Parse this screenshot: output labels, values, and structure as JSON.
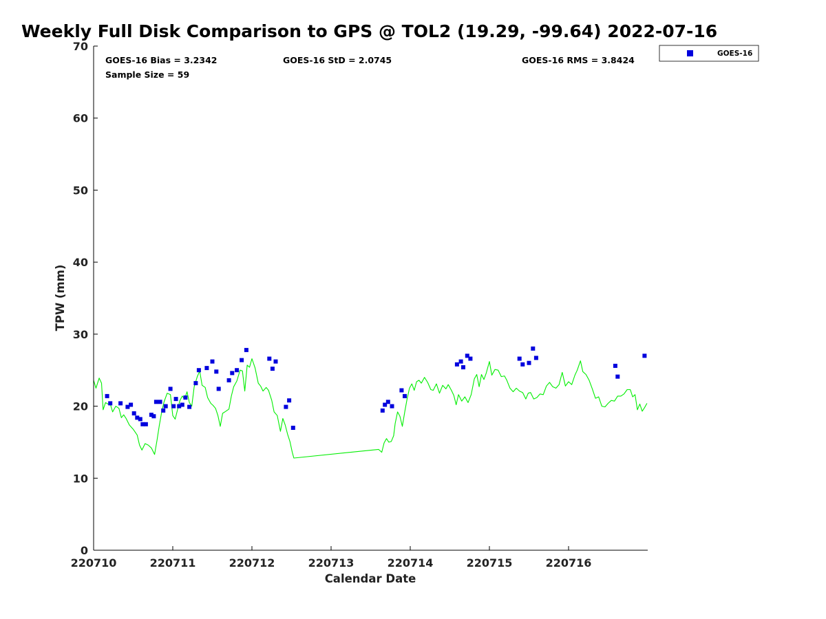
{
  "chart_data": {
    "type": "scatter",
    "title": "Weekly Full Disk Comparison to GPS @ TOL2 (19.29, -99.64) 2022-07-16",
    "xlabel": "Calendar Date",
    "ylabel": "TPW (mm)",
    "x_unit": "days (220710 = 0)",
    "xlim": [
      0,
      7
    ],
    "ylim": [
      0,
      70
    ],
    "x_ticks": [
      0,
      1,
      2,
      3,
      4,
      5,
      6
    ],
    "x_tick_labels": [
      "220710",
      "220711",
      "220712",
      "220713",
      "220714",
      "220715",
      "220716"
    ],
    "y_ticks": [
      0,
      10,
      20,
      30,
      40,
      50,
      60,
      70
    ],
    "y_tick_labels": [
      "0",
      "10",
      "20",
      "30",
      "40",
      "50",
      "60",
      "70"
    ],
    "grid": false,
    "legend_position": "outside-top-right",
    "stats": {
      "bias": "GOES-16 Bias = 3.2342",
      "std": "GOES-16 StD = 2.0745",
      "rms": "GOES-16 RMS = 3.8424",
      "sample_size": "Sample Size = 59"
    },
    "series": [
      {
        "name": "GOES-16",
        "kind": "markers",
        "color": "#0000dd",
        "points": [
          [
            0.17,
            21.4
          ],
          [
            0.21,
            20.4
          ],
          [
            0.34,
            20.4
          ],
          [
            0.43,
            19.9
          ],
          [
            0.47,
            20.2
          ],
          [
            0.51,
            19.0
          ],
          [
            0.55,
            18.4
          ],
          [
            0.59,
            18.2
          ],
          [
            0.62,
            17.5
          ],
          [
            0.66,
            17.5
          ],
          [
            0.73,
            18.8
          ],
          [
            0.76,
            18.6
          ],
          [
            0.79,
            20.6
          ],
          [
            0.84,
            20.6
          ],
          [
            0.88,
            19.4
          ],
          [
            0.91,
            20.0
          ],
          [
            0.97,
            22.4
          ],
          [
            1.01,
            20.0
          ],
          [
            1.04,
            21.0
          ],
          [
            1.08,
            20.0
          ],
          [
            1.12,
            20.2
          ],
          [
            1.16,
            21.2
          ],
          [
            1.21,
            19.9
          ],
          [
            1.29,
            23.2
          ],
          [
            1.33,
            25.0
          ],
          [
            1.43,
            25.3
          ],
          [
            1.5,
            26.2
          ],
          [
            1.55,
            24.8
          ],
          [
            1.58,
            22.4
          ],
          [
            1.71,
            23.6
          ],
          [
            1.75,
            24.6
          ],
          [
            1.81,
            25.0
          ],
          [
            1.87,
            26.4
          ],
          [
            1.93,
            27.8
          ],
          [
            2.22,
            26.6
          ],
          [
            2.26,
            25.2
          ],
          [
            2.3,
            26.2
          ],
          [
            2.43,
            19.9
          ],
          [
            2.47,
            20.8
          ],
          [
            2.52,
            17.0
          ],
          [
            3.65,
            19.4
          ],
          [
            3.68,
            20.2
          ],
          [
            3.72,
            20.6
          ],
          [
            3.77,
            20.0
          ],
          [
            3.89,
            22.2
          ],
          [
            3.93,
            21.4
          ],
          [
            4.59,
            25.8
          ],
          [
            4.64,
            26.2
          ],
          [
            4.67,
            25.4
          ],
          [
            4.72,
            27.0
          ],
          [
            4.76,
            26.6
          ],
          [
            5.38,
            26.6
          ],
          [
            5.42,
            25.8
          ],
          [
            5.5,
            26.0
          ],
          [
            5.55,
            28.0
          ],
          [
            5.59,
            26.7
          ],
          [
            6.59,
            25.6
          ],
          [
            6.62,
            24.1
          ],
          [
            6.96,
            27.0
          ]
        ]
      },
      {
        "name": "GPS",
        "kind": "line",
        "color": "#00ee00",
        "points": [
          [
            0.0,
            23.6
          ],
          [
            0.03,
            22.5
          ],
          [
            0.07,
            23.9
          ],
          [
            0.1,
            23.2
          ],
          [
            0.12,
            19.5
          ],
          [
            0.15,
            20.5
          ],
          [
            0.18,
            20.3
          ],
          [
            0.21,
            20.3
          ],
          [
            0.24,
            19.2
          ],
          [
            0.28,
            20.0
          ],
          [
            0.32,
            19.7
          ],
          [
            0.35,
            18.4
          ],
          [
            0.38,
            18.8
          ],
          [
            0.41,
            18.3
          ],
          [
            0.45,
            17.4
          ],
          [
            0.5,
            16.8
          ],
          [
            0.55,
            16.0
          ],
          [
            0.58,
            14.6
          ],
          [
            0.61,
            13.9
          ],
          [
            0.65,
            14.8
          ],
          [
            0.69,
            14.6
          ],
          [
            0.73,
            14.2
          ],
          [
            0.77,
            13.3
          ],
          [
            0.8,
            15.2
          ],
          [
            0.83,
            17.3
          ],
          [
            0.86,
            19.2
          ],
          [
            0.89,
            20.6
          ],
          [
            0.93,
            21.8
          ],
          [
            0.97,
            21.6
          ],
          [
            1.0,
            18.7
          ],
          [
            1.03,
            18.2
          ],
          [
            1.06,
            19.5
          ],
          [
            1.09,
            20.8
          ],
          [
            1.12,
            21.4
          ],
          [
            1.15,
            21.0
          ],
          [
            1.18,
            22.0
          ],
          [
            1.21,
            20.5
          ],
          [
            1.24,
            20.0
          ],
          [
            1.27,
            22.7
          ],
          [
            1.31,
            24.1
          ],
          [
            1.34,
            24.9
          ],
          [
            1.37,
            22.9
          ],
          [
            1.41,
            22.6
          ],
          [
            1.44,
            21.2
          ],
          [
            1.48,
            20.4
          ],
          [
            1.51,
            20.1
          ],
          [
            1.54,
            19.7
          ],
          [
            1.57,
            18.7
          ],
          [
            1.6,
            17.2
          ],
          [
            1.63,
            19.0
          ],
          [
            1.67,
            19.3
          ],
          [
            1.71,
            19.6
          ],
          [
            1.74,
            21.4
          ],
          [
            1.77,
            22.7
          ],
          [
            1.81,
            23.5
          ],
          [
            1.85,
            25.0
          ],
          [
            1.88,
            24.9
          ],
          [
            1.91,
            22.1
          ],
          [
            1.94,
            25.7
          ],
          [
            1.97,
            25.4
          ],
          [
            2.0,
            26.6
          ],
          [
            2.04,
            25.3
          ],
          [
            2.08,
            23.2
          ],
          [
            2.11,
            22.8
          ],
          [
            2.14,
            22.1
          ],
          [
            2.18,
            22.6
          ],
          [
            2.21,
            22.2
          ],
          [
            2.25,
            20.8
          ],
          [
            2.28,
            19.2
          ],
          [
            2.32,
            18.7
          ],
          [
            2.36,
            16.5
          ],
          [
            2.39,
            18.3
          ],
          [
            2.42,
            17.4
          ],
          [
            2.45,
            16.1
          ],
          [
            2.48,
            15.1
          ],
          [
            2.51,
            13.6
          ],
          [
            2.53,
            12.8
          ],
          [
            3.6,
            14.0
          ],
          [
            3.64,
            13.6
          ],
          [
            3.67,
            14.9
          ],
          [
            3.7,
            15.5
          ],
          [
            3.73,
            15.0
          ],
          [
            3.76,
            15.1
          ],
          [
            3.79,
            15.9
          ],
          [
            3.81,
            17.6
          ],
          [
            3.84,
            19.2
          ],
          [
            3.87,
            18.6
          ],
          [
            3.9,
            17.2
          ],
          [
            3.93,
            19.2
          ],
          [
            3.96,
            21.0
          ],
          [
            3.99,
            22.5
          ],
          [
            4.02,
            23.1
          ],
          [
            4.05,
            22.2
          ],
          [
            4.08,
            23.4
          ],
          [
            4.11,
            23.6
          ],
          [
            4.14,
            23.2
          ],
          [
            4.18,
            24.0
          ],
          [
            4.22,
            23.3
          ],
          [
            4.26,
            22.3
          ],
          [
            4.29,
            22.2
          ],
          [
            4.33,
            23.1
          ],
          [
            4.37,
            21.8
          ],
          [
            4.41,
            22.9
          ],
          [
            4.45,
            22.4
          ],
          [
            4.48,
            23.0
          ],
          [
            4.52,
            22.2
          ],
          [
            4.55,
            21.5
          ],
          [
            4.58,
            20.2
          ],
          [
            4.61,
            21.6
          ],
          [
            4.65,
            20.7
          ],
          [
            4.69,
            21.3
          ],
          [
            4.73,
            20.5
          ],
          [
            4.77,
            21.6
          ],
          [
            4.81,
            23.8
          ],
          [
            4.84,
            24.4
          ],
          [
            4.87,
            22.7
          ],
          [
            4.9,
            24.4
          ],
          [
            4.93,
            23.7
          ],
          [
            4.96,
            24.6
          ],
          [
            5.0,
            26.2
          ],
          [
            5.03,
            24.3
          ],
          [
            5.07,
            25.1
          ],
          [
            5.11,
            25.0
          ],
          [
            5.15,
            24.1
          ],
          [
            5.19,
            24.2
          ],
          [
            5.22,
            23.6
          ],
          [
            5.26,
            22.5
          ],
          [
            5.3,
            22.0
          ],
          [
            5.34,
            22.5
          ],
          [
            5.38,
            22.1
          ],
          [
            5.42,
            21.9
          ],
          [
            5.46,
            21.0
          ],
          [
            5.49,
            21.8
          ],
          [
            5.52,
            21.9
          ],
          [
            5.56,
            21.0
          ],
          [
            5.6,
            21.2
          ],
          [
            5.64,
            21.7
          ],
          [
            5.68,
            21.6
          ],
          [
            5.72,
            22.8
          ],
          [
            5.76,
            23.3
          ],
          [
            5.8,
            22.7
          ],
          [
            5.84,
            22.5
          ],
          [
            5.88,
            23.0
          ],
          [
            5.92,
            24.7
          ],
          [
            5.96,
            22.8
          ],
          [
            6.0,
            23.4
          ],
          [
            6.04,
            23.0
          ],
          [
            6.08,
            24.3
          ],
          [
            6.11,
            25.0
          ],
          [
            6.15,
            26.3
          ],
          [
            6.18,
            24.8
          ],
          [
            6.22,
            24.4
          ],
          [
            6.26,
            23.6
          ],
          [
            6.3,
            22.4
          ],
          [
            6.34,
            21.1
          ],
          [
            6.38,
            21.3
          ],
          [
            6.42,
            20.0
          ],
          [
            6.46,
            19.9
          ],
          [
            6.5,
            20.4
          ],
          [
            6.54,
            20.8
          ],
          [
            6.58,
            20.7
          ],
          [
            6.62,
            21.4
          ],
          [
            6.66,
            21.4
          ],
          [
            6.7,
            21.7
          ],
          [
            6.74,
            22.3
          ],
          [
            6.78,
            22.3
          ],
          [
            6.81,
            21.3
          ],
          [
            6.84,
            21.6
          ],
          [
            6.87,
            19.5
          ],
          [
            6.9,
            20.3
          ],
          [
            6.93,
            19.3
          ],
          [
            6.96,
            19.8
          ],
          [
            6.99,
            20.4
          ]
        ]
      }
    ],
    "legend": [
      {
        "label": "GOES-16",
        "color": "#0000dd",
        "marker": "square"
      }
    ]
  }
}
